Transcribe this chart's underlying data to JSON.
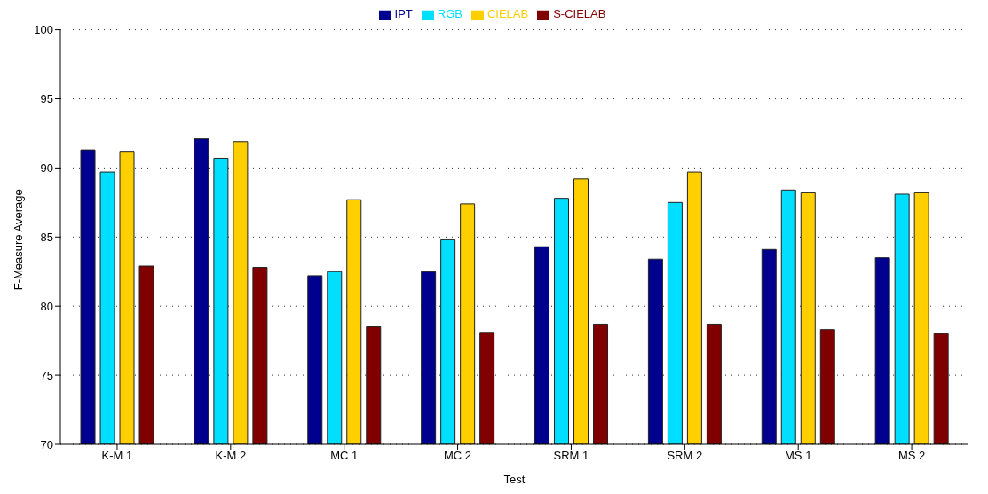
{
  "chart_data": {
    "type": "bar",
    "xlabel": "Test",
    "ylabel": "F-Measure Average",
    "categories": [
      "K-M 1",
      "K-M 2",
      "MC 1",
      "MC 2",
      "SRM 1",
      "SRM 2",
      "MS 1",
      "MS 2"
    ],
    "series": [
      {
        "name": "IPT",
        "color": "#00008f",
        "values": [
          91.3,
          92.1,
          82.2,
          82.5,
          84.3,
          83.4,
          84.1,
          83.5
        ]
      },
      {
        "name": "RGB",
        "color": "#00dfff",
        "values": [
          89.7,
          90.7,
          82.5,
          84.8,
          87.8,
          87.5,
          88.4,
          88.1
        ]
      },
      {
        "name": "CIELAB",
        "color": "#ffcf00",
        "values": [
          91.2,
          91.9,
          87.7,
          87.4,
          89.2,
          89.7,
          88.2,
          88.2
        ]
      },
      {
        "name": "S-CIELAB",
        "color": "#800000",
        "values": [
          82.9,
          82.8,
          78.5,
          78.1,
          78.7,
          78.7,
          78.3,
          78.0
        ]
      }
    ],
    "ylim": [
      70,
      100
    ],
    "yticks": [
      70,
      75,
      80,
      85,
      90,
      95,
      100
    ],
    "grid": "y",
    "legend": "top"
  }
}
